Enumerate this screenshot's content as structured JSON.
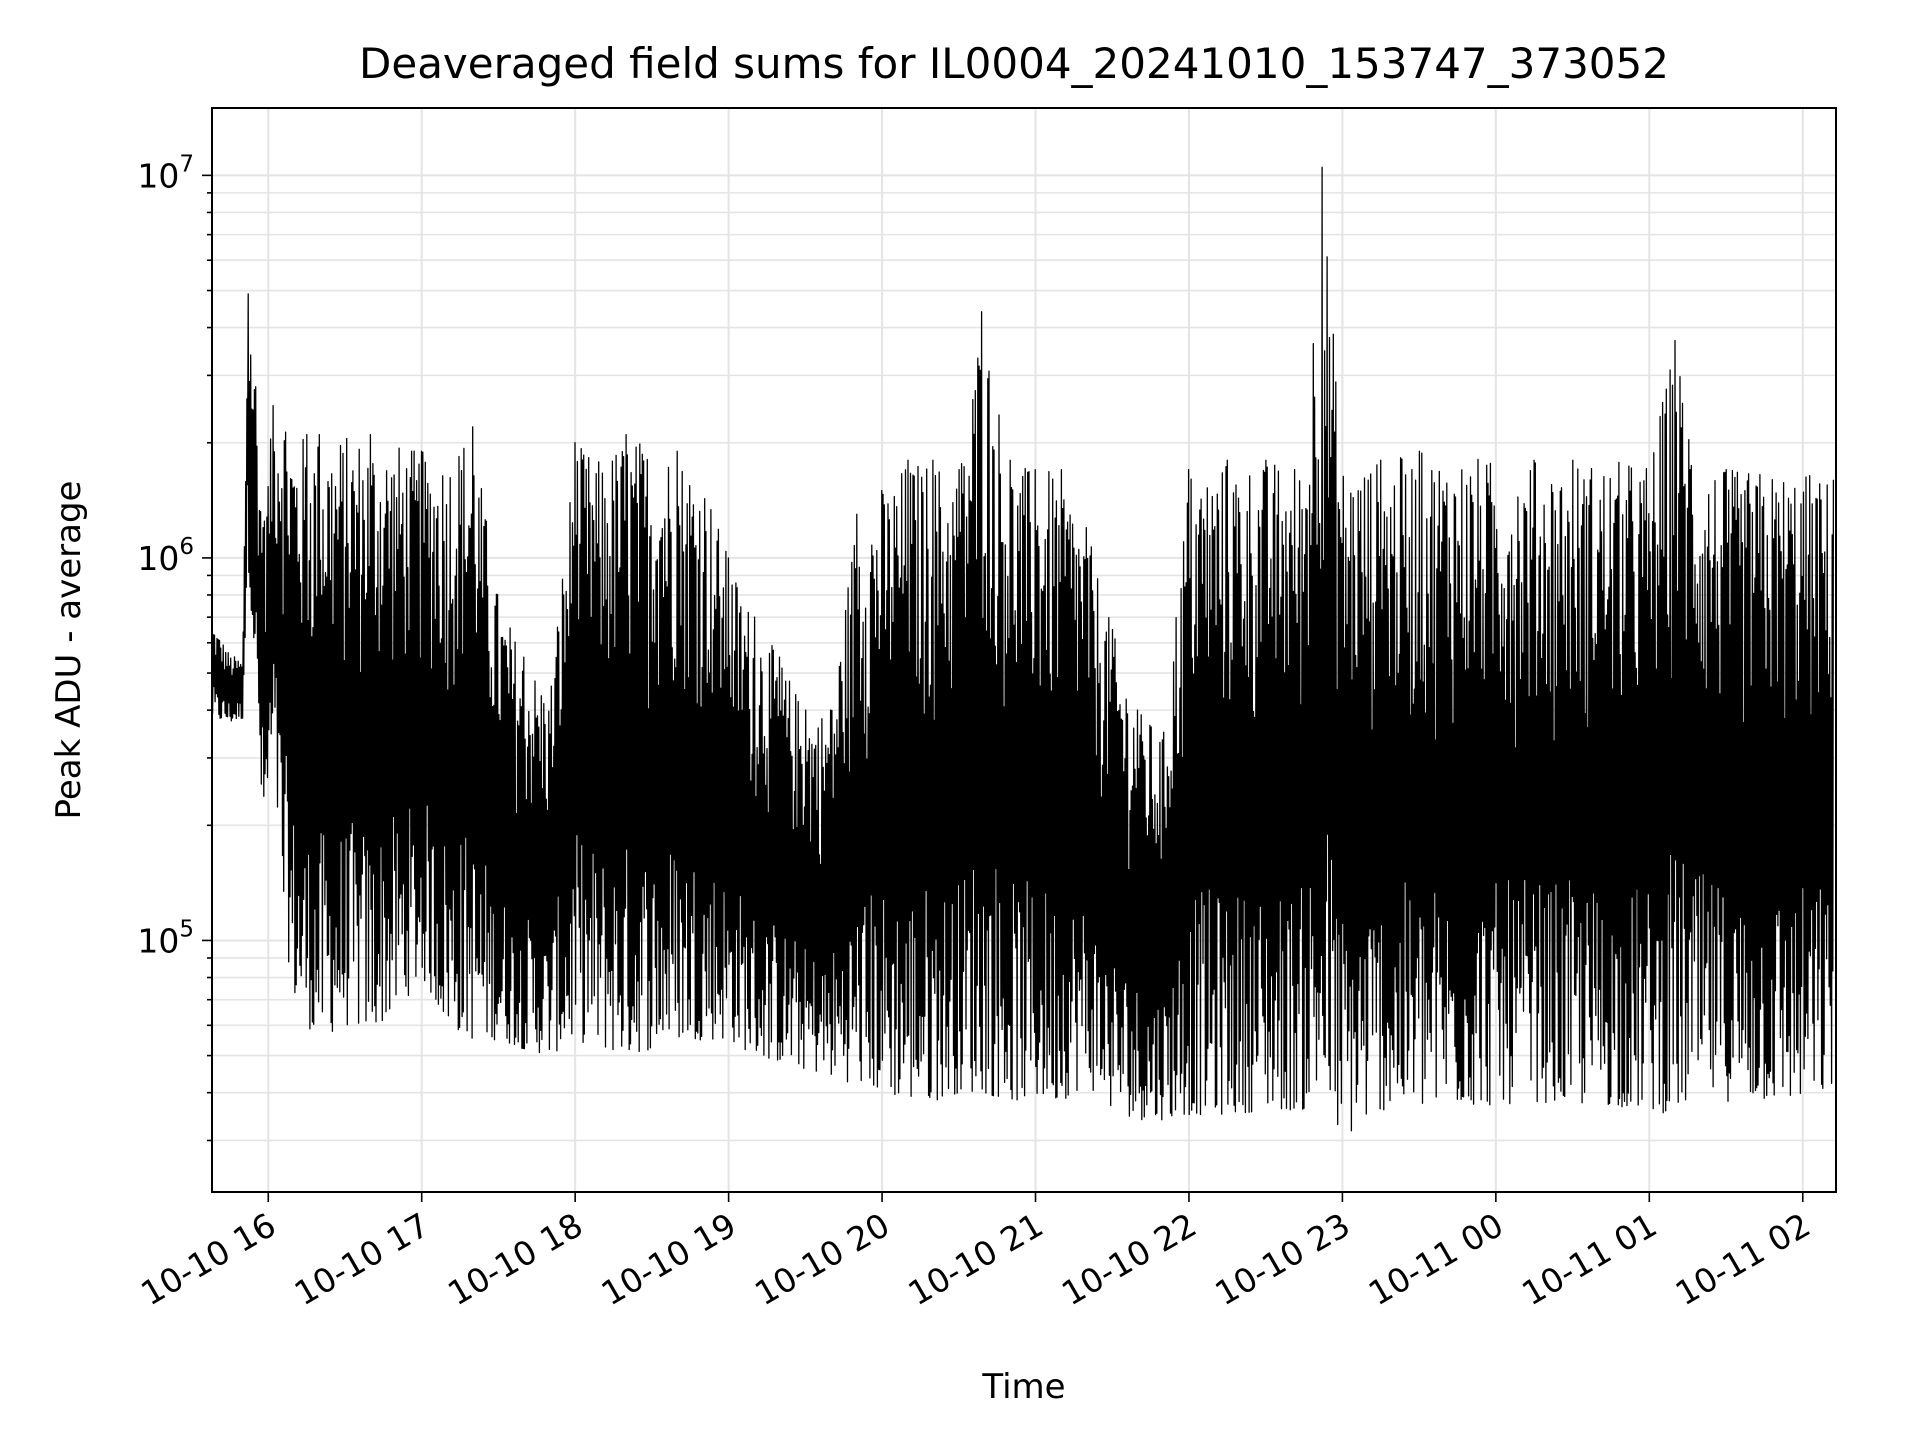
{
  "chart_data": {
    "type": "line",
    "title": "Deaveraged field sums for IL0004_20241010_153747_373052",
    "xlabel": "Time",
    "ylabel": "Peak ADU - average",
    "yscale": "log",
    "ylim": [
      22000,
      15000000
    ],
    "xlim": [
      "2024-10-10 15:38",
      "2024-10-11 02:13"
    ],
    "grid": true,
    "line_color": "#000000",
    "x_ticks": [
      "10-10 16",
      "10-10 17",
      "10-10 18",
      "10-10 19",
      "10-10 20",
      "10-10 21",
      "10-10 22",
      "10-10 23",
      "10-11 00",
      "10-11 01",
      "10-11 02"
    ],
    "y_ticks": [
      {
        "value": 100000,
        "base": "10",
        "exp": "5"
      },
      {
        "value": 1000000,
        "base": "10",
        "exp": "6"
      },
      {
        "value": 10000000,
        "base": "10",
        "exp": "7"
      }
    ],
    "series": [
      {
        "x": [
          "2024-10-10 15:38",
          "2024-10-10 15:45",
          "2024-10-10 15:50",
          "2024-10-10 15:52",
          "2024-10-10 15:55",
          "2024-10-10 15:58",
          "2024-10-10 16:02",
          "2024-10-10 16:06",
          "2024-10-10 16:10",
          "2024-10-10 16:15",
          "2024-10-10 16:20",
          "2024-10-10 16:30",
          "2024-10-10 16:40",
          "2024-10-10 16:50",
          "2024-10-10 17:00",
          "2024-10-10 17:10",
          "2024-10-10 17:20",
          "2024-10-10 17:30",
          "2024-10-10 17:40",
          "2024-10-10 17:50",
          "2024-10-10 18:00",
          "2024-10-10 18:10",
          "2024-10-10 18:20",
          "2024-10-10 18:30",
          "2024-10-10 18:40",
          "2024-10-10 18:50",
          "2024-10-10 19:00",
          "2024-10-10 19:10",
          "2024-10-10 19:20",
          "2024-10-10 19:30",
          "2024-10-10 19:40",
          "2024-10-10 19:50",
          "2024-10-10 20:00",
          "2024-10-10 20:10",
          "2024-10-10 20:20",
          "2024-10-10 20:30",
          "2024-10-10 20:39",
          "2024-10-10 20:50",
          "2024-10-10 21:00",
          "2024-10-10 21:10",
          "2024-10-10 21:20",
          "2024-10-10 21:30",
          "2024-10-10 21:40",
          "2024-10-10 21:50",
          "2024-10-10 22:00",
          "2024-10-10 22:15",
          "2024-10-10 22:30",
          "2024-10-10 22:45",
          "2024-10-10 22:52",
          "2024-10-10 23:00",
          "2024-10-10 23:15",
          "2024-10-10 23:30",
          "2024-10-10 23:45",
          "2024-10-11 00:00",
          "2024-10-11 00:15",
          "2024-10-11 00:30",
          "2024-10-11 00:45",
          "2024-10-11 01:00",
          "2024-10-11 01:10",
          "2024-10-11 01:20",
          "2024-10-11 01:30",
          "2024-10-11 01:45",
          "2024-10-11 02:00",
          "2024-10-11 02:12"
        ],
        "y_high": [
          680000,
          560000,
          540000,
          4900000,
          2800000,
          1200000,
          2500000,
          2700000,
          2100000,
          2100000,
          2100000,
          2100000,
          2100000,
          2000000,
          1900000,
          1900000,
          2200000,
          800000,
          550000,
          450000,
          2000000,
          1800000,
          2100000,
          2000000,
          1900000,
          1700000,
          1000000,
          700000,
          550000,
          400000,
          400000,
          1300000,
          1500000,
          1800000,
          1800000,
          1700000,
          4400000,
          1800000,
          1700000,
          1700000,
          1200000,
          650000,
          400000,
          350000,
          1700000,
          1800000,
          1800000,
          1800000,
          10500000,
          1800000,
          1800000,
          1900000,
          1900000,
          1800000,
          1800000,
          1800000,
          1800000,
          1800000,
          3700000,
          1800000,
          1700000,
          1700000,
          1700000,
          1600000
        ],
        "y_low": [
          380000,
          370000,
          380000,
          1000000,
          500000,
          180000,
          300000,
          110000,
          70000,
          60000,
          55000,
          60000,
          58000,
          65000,
          80000,
          60000,
          55000,
          55000,
          52000,
          50000,
          55000,
          52000,
          50000,
          52000,
          55000,
          55000,
          55000,
          50000,
          48000,
          46000,
          44000,
          42000,
          40000,
          38000,
          38000,
          40000,
          40000,
          38000,
          38000,
          38000,
          42000,
          36000,
          34000,
          34000,
          35000,
          35000,
          36000,
          36000,
          38000,
          30000,
          36000,
          36000,
          37000,
          37000,
          38000,
          37000,
          37000,
          36000,
          35000,
          40000,
          38000,
          38000,
          38000,
          40000
        ]
      }
    ]
  }
}
